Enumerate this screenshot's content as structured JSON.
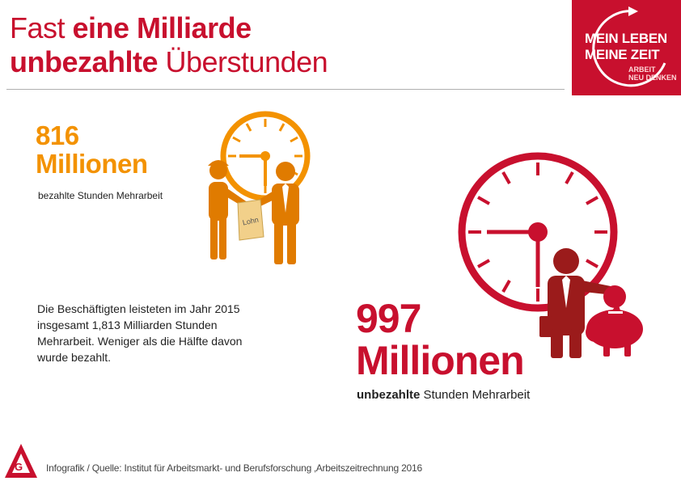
{
  "title": {
    "line1_regular": "Fast ",
    "line1_bold": "eine Milliarde",
    "line2_bold": "unbezahlte",
    "line2_regular": " Überstunden"
  },
  "logo": {
    "line1": "MEIN LEBEN",
    "line2": "MEINE ZEIT",
    "sub1": "ARBEIT",
    "sub2": "NEU DENKEN"
  },
  "paid": {
    "number": "816",
    "unit": "Millionen",
    "label": "bezahlte Stunden Mehrarbeit",
    "bag_label": "Lohn"
  },
  "description": "Die Beschäftigten leisteten im Jahr 2015 insgesamt 1,813 Milliarden Stunden Mehrarbeit. Weniger als die Hälfte davon wurde bezahlt.",
  "unpaid": {
    "number": "997",
    "unit": "Millionen",
    "label_bold": "unbezahlte",
    "label_regular": " Stunden Mehrarbeit"
  },
  "footer": {
    "source": "Infografik / Quelle: Institut für Arbeitsmarkt- und Berufsforschung ‚Arbeitszeitrechnung 2016"
  },
  "colors": {
    "red": "#c8102e",
    "orange": "#f39200",
    "dark_red": "#9b1b1b"
  }
}
